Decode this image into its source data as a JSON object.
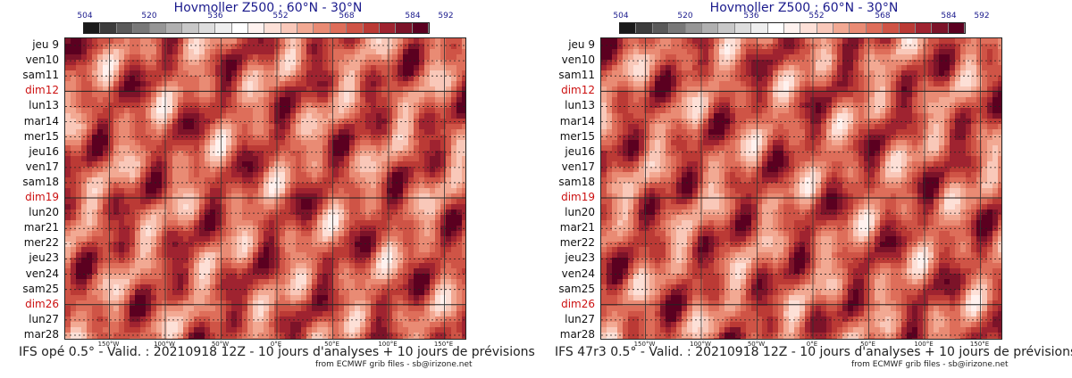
{
  "colorbar": {
    "colors": [
      "#1a1a1a",
      "#3c3c3c",
      "#5a5a5a",
      "#787878",
      "#969696",
      "#b0b0b0",
      "#c8c8c8",
      "#dddddd",
      "#eeeeee",
      "#ffffff",
      "#fff2ef",
      "#fde0d7",
      "#f9c8b9",
      "#f2a993",
      "#e98b74",
      "#de6e5a",
      "#cf5446",
      "#bb3a35",
      "#9f2330",
      "#7c1329",
      "#5b0020"
    ],
    "ticks": [
      "504",
      "520",
      "536",
      "552",
      "568",
      "584",
      "592"
    ]
  },
  "panels": [
    {
      "id": "left",
      "title": "Hovmoller Z500 : 60°N - 30°N",
      "footer": "IFS opé 0.5° - Valid. : 20210918 12Z - 10 jours d'analyses + 10 jours de prévisions",
      "credit": "from ECMWF grib files - sb@irizone.net"
    },
    {
      "id": "right",
      "title": "Hovmoller Z500 : 60°N - 30°N",
      "footer": "IFS 47r3 0.5° - Valid. : 20210918 12Z - 10 jours d'analyses + 10 jours de prévisions",
      "credit": "from ECMWF grib files - sb@irizone.net"
    }
  ],
  "chart_data": {
    "type": "heatmap",
    "x_ticks": [
      "150°W",
      "100°W",
      "50°W",
      "0°E",
      "50°E",
      "100°E",
      "150°E"
    ],
    "y_ticks": [
      "jeu 9",
      "ven10",
      "sam11",
      "dim12",
      "lun13",
      "mar14",
      "mer15",
      "jeu16",
      "ven17",
      "sam18",
      "dim19",
      "lun20",
      "mar21",
      "mer22",
      "jeu23",
      "ven24",
      "sam25",
      "dim26",
      "lun27",
      "mar28"
    ],
    "y_highlight": [
      "dim12",
      "dim19",
      "dim26"
    ],
    "color_range": [
      504,
      592
    ],
    "grid": true
  }
}
